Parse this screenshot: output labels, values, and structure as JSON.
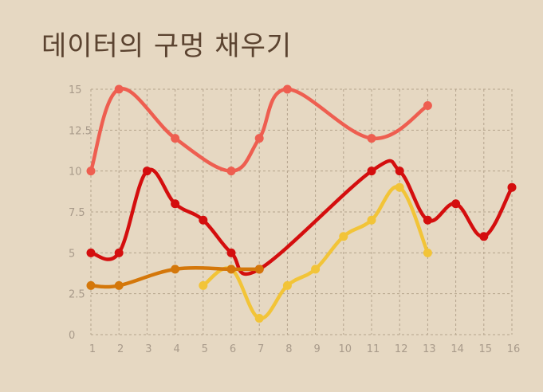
{
  "title": "데이터의 구멍 채우기",
  "colors": {
    "background": "#e6d8c2",
    "grid": "#b4a38c",
    "tick_text": "#a89a8a",
    "title_text": "#5b4330"
  },
  "chart_data": {
    "type": "line",
    "title": "데이터의 구멍 채우기",
    "xlabel": "",
    "ylabel": "",
    "x": [
      1,
      2,
      3,
      4,
      5,
      6,
      7,
      8,
      9,
      10,
      11,
      12,
      13,
      14,
      15,
      16
    ],
    "xlim": [
      1,
      16
    ],
    "ylim": [
      0,
      15
    ],
    "x_ticks": [
      "1",
      "2",
      "3",
      "4",
      "5",
      "6",
      "7",
      "8",
      "9",
      "10",
      "11",
      "12",
      "13",
      "14",
      "15",
      "16"
    ],
    "y_ticks": [
      "0",
      "2.5",
      "5",
      "7.5",
      "10",
      "12.5",
      "15"
    ],
    "y_tick_values": [
      0,
      2.5,
      5,
      7.5,
      10,
      12.5,
      15
    ],
    "grid": true,
    "curve": "smooth",
    "series": [
      {
        "color": "#ee5e50",
        "points": [
          [
            1,
            10
          ],
          [
            2,
            15
          ],
          [
            4,
            12
          ],
          [
            6,
            10
          ],
          [
            7,
            12
          ],
          [
            8,
            15
          ],
          [
            11,
            12
          ],
          [
            13,
            14
          ]
        ]
      },
      {
        "color": "#d40e0e",
        "points": [
          [
            1,
            5
          ],
          [
            2,
            5
          ],
          [
            3,
            10
          ],
          [
            4,
            8
          ],
          [
            5,
            7
          ],
          [
            6,
            5
          ],
          [
            7,
            4
          ],
          [
            11,
            10
          ],
          [
            12,
            10
          ],
          [
            13,
            7
          ],
          [
            14,
            8
          ],
          [
            15,
            6
          ],
          [
            16,
            9
          ]
        ]
      },
      {
        "color": "#f2c438",
        "points": [
          [
            5,
            3
          ],
          [
            6,
            4
          ],
          [
            7,
            1
          ],
          [
            8,
            3
          ],
          [
            9,
            4
          ],
          [
            10,
            6
          ],
          [
            11,
            7
          ],
          [
            12,
            9
          ],
          [
            13,
            5
          ]
        ]
      },
      {
        "color": "#d4770a",
        "points": [
          [
            1,
            3
          ],
          [
            2,
            3
          ],
          [
            4,
            4
          ],
          [
            6,
            4
          ],
          [
            7,
            4
          ]
        ]
      }
    ]
  }
}
